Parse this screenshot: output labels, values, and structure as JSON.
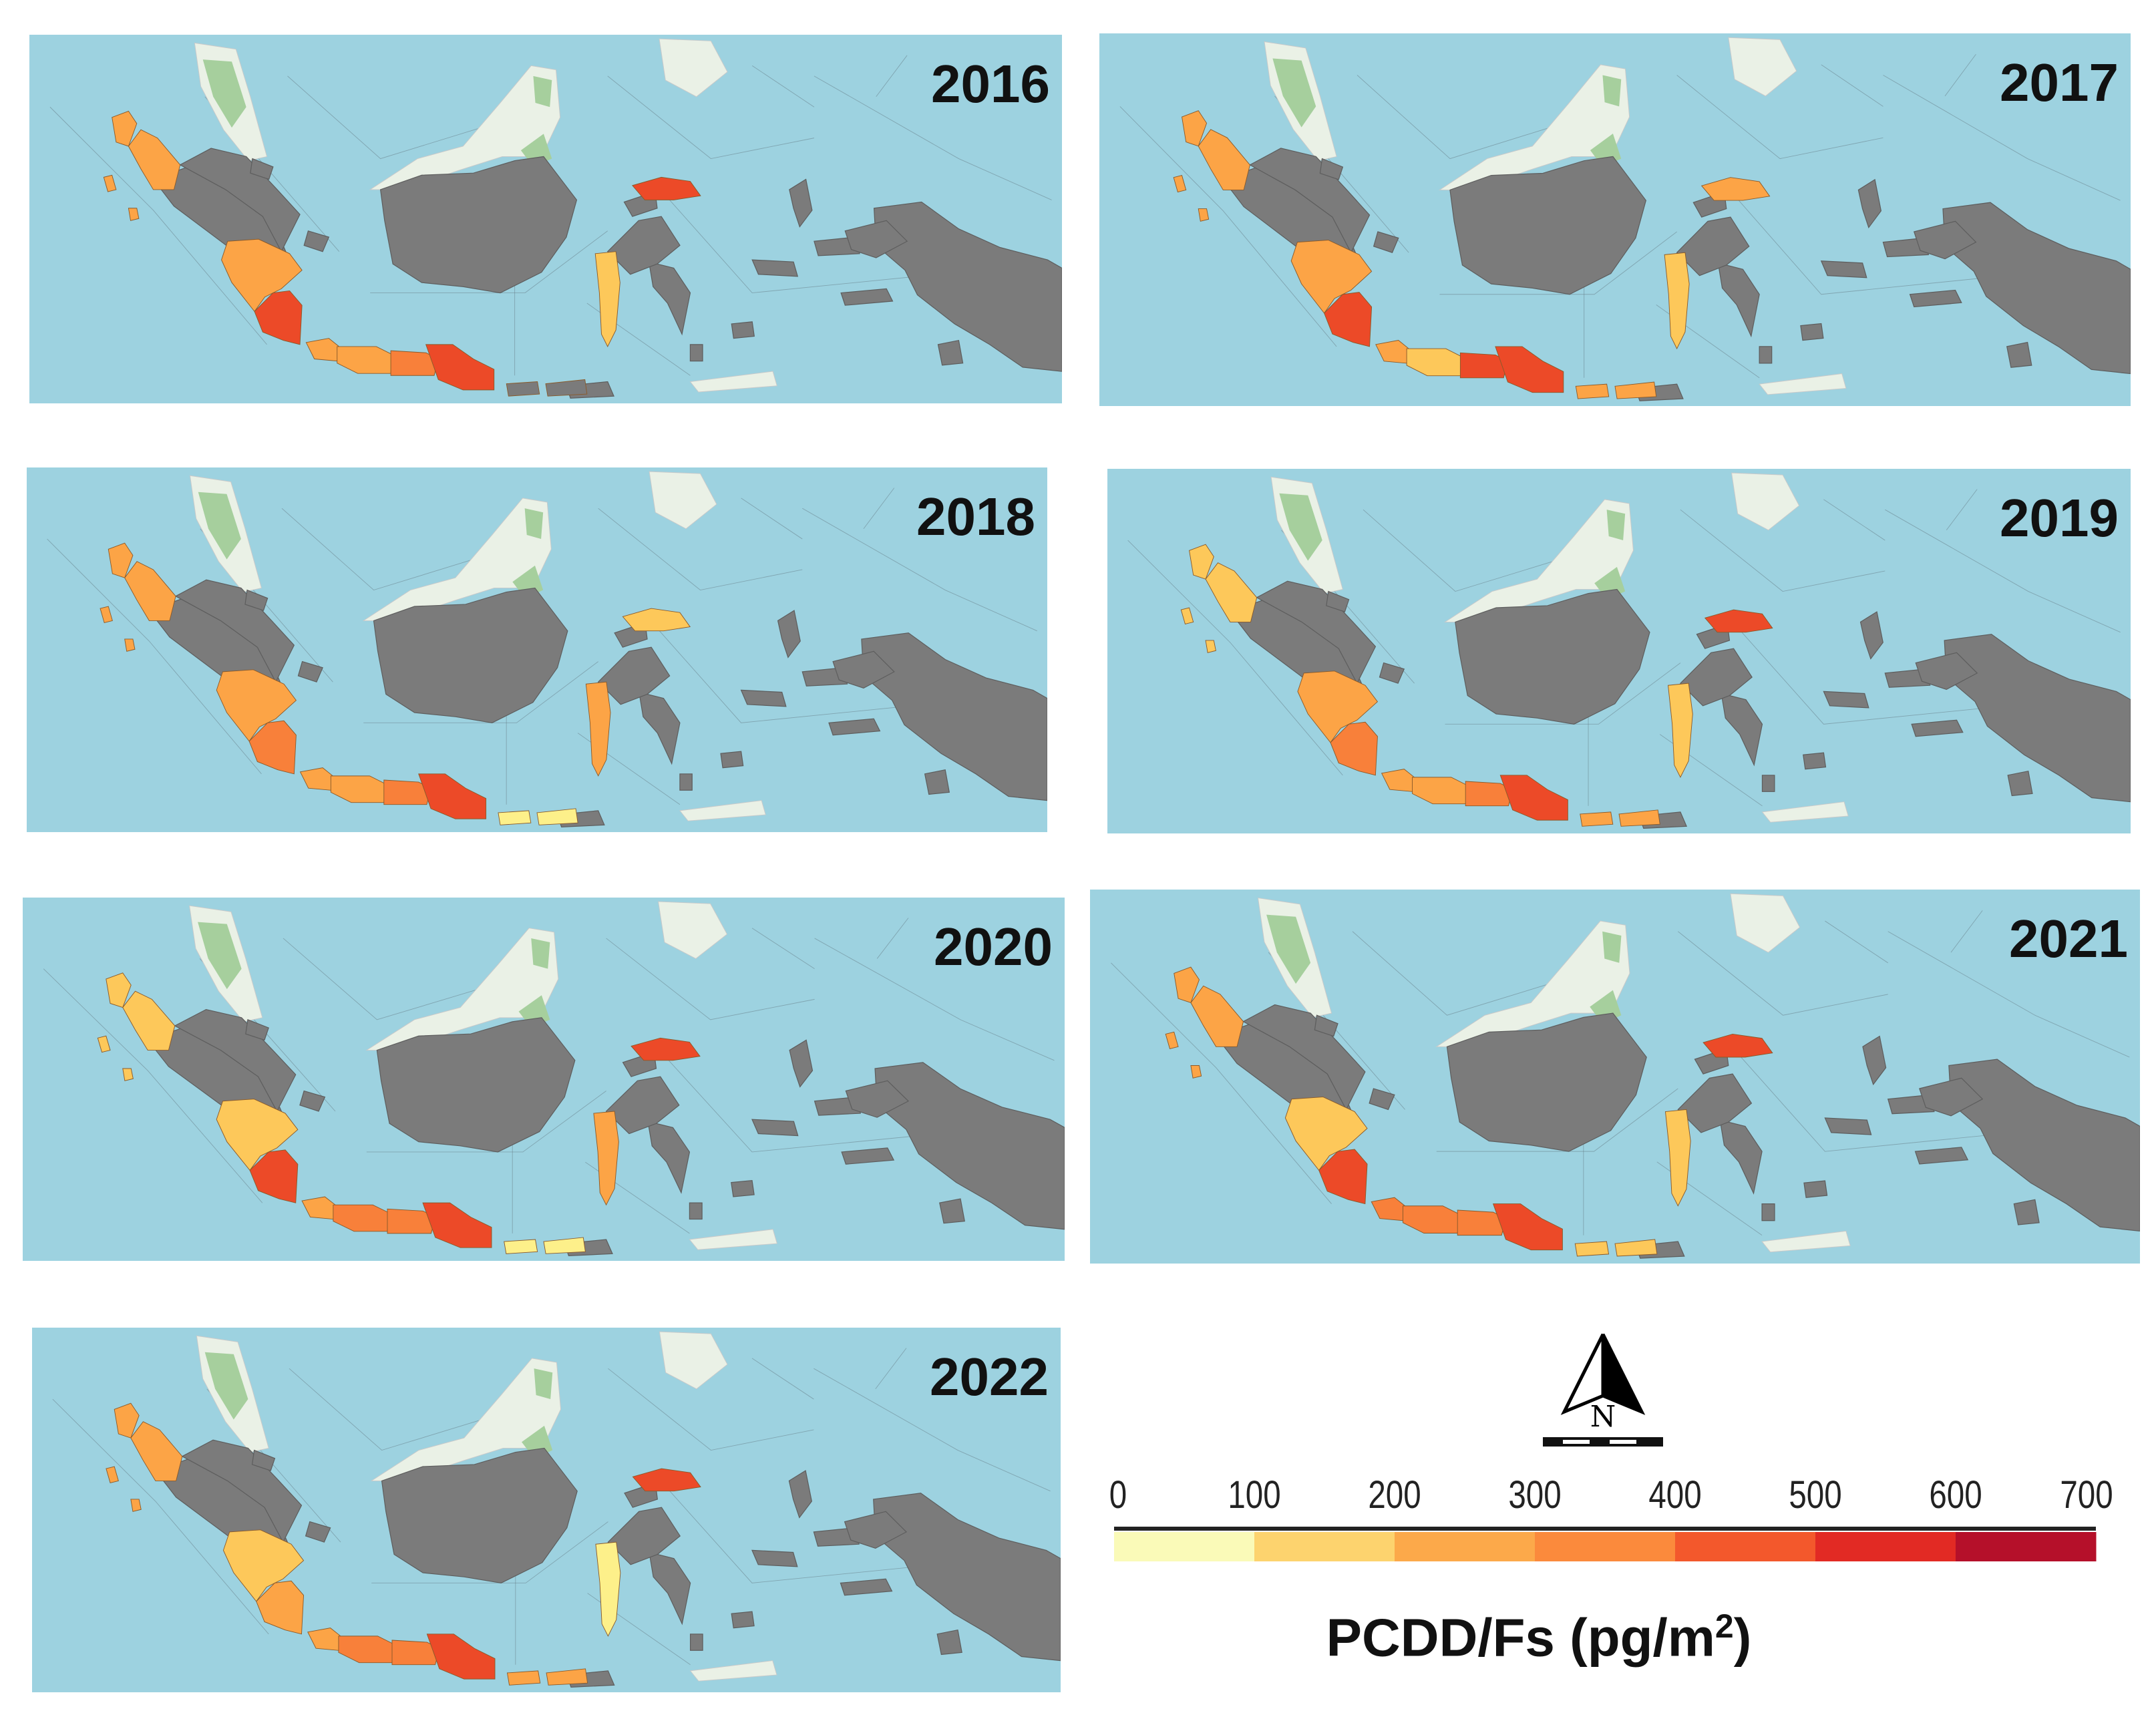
{
  "panels": [
    {
      "year": "2016",
      "province_levels": {
        "aceh": "c2",
        "north_sumatra": "c2",
        "west_sumatra_islands": "c2",
        "south_sumatra": "c2",
        "lampung": "c4",
        "banten": "c2",
        "west_java": "c2",
        "central_java": "c3",
        "east_java": "c4",
        "north_sulawesi": "c4",
        "west_sulawesi": "c1",
        "ntb": null,
        "ntt": null
      }
    },
    {
      "year": "2017",
      "province_levels": {
        "aceh": "c2",
        "north_sumatra": "c2",
        "west_sumatra_islands": "c2",
        "south_sumatra": "c2",
        "lampung": "c4",
        "banten": "c2",
        "west_java": "c1",
        "central_java": "c4",
        "east_java": "c4",
        "north_sulawesi": "c2",
        "west_sulawesi": "c1",
        "ntb": "c2",
        "ntt": "c2"
      }
    },
    {
      "year": "2018",
      "province_levels": {
        "aceh": "c2",
        "north_sumatra": "c2",
        "west_sumatra_islands": "c2",
        "south_sumatra": "c2",
        "lampung": "c3",
        "banten": "c2",
        "west_java": "c2",
        "central_java": "c3",
        "east_java": "c4",
        "north_sulawesi": "c1",
        "west_sulawesi": "c2",
        "ntb": "c0",
        "ntt": "c0"
      }
    },
    {
      "year": "2019",
      "province_levels": {
        "aceh": "c1",
        "north_sumatra": "c1",
        "west_sumatra_islands": "c1",
        "south_sumatra": "c2",
        "lampung": "c3",
        "banten": "c2",
        "west_java": "c2",
        "central_java": "c3",
        "east_java": "c4",
        "north_sulawesi": "c4",
        "west_sulawesi": "c1",
        "ntb": "c2",
        "ntt": "c2"
      }
    },
    {
      "year": "2020",
      "province_levels": {
        "aceh": "c1",
        "north_sumatra": "c1",
        "west_sumatra_islands": "c1",
        "south_sumatra": "c1",
        "lampung": "c4",
        "banten": "c2",
        "west_java": "c3",
        "central_java": "c3",
        "east_java": "c4",
        "north_sulawesi": "c4",
        "west_sulawesi": "c2",
        "ntb": "c0",
        "ntt": "c0"
      }
    },
    {
      "year": "2021",
      "province_levels": {
        "aceh": "c2",
        "north_sumatra": "c2",
        "west_sumatra_islands": "c2",
        "south_sumatra": "c1",
        "lampung": "c4",
        "banten": "c3",
        "west_java": "c3",
        "central_java": "c3",
        "east_java": "c4",
        "north_sulawesi": "c4",
        "west_sulawesi": "c1",
        "ntb": "c1",
        "ntt": "c1"
      }
    },
    {
      "year": "2022",
      "province_levels": {
        "aceh": "c2",
        "north_sumatra": "c2",
        "west_sumatra_islands": "c2",
        "south_sumatra": "c1",
        "lampung": "c2",
        "banten": "c2",
        "west_java": "c3",
        "central_java": "c3",
        "east_java": "c4",
        "north_sulawesi": "c4",
        "west_sulawesi": "c0",
        "ntb": "c2",
        "ntt": "c2"
      }
    }
  ],
  "legend": {
    "ticks": [
      "0",
      "100",
      "200",
      "300",
      "400",
      "500",
      "600",
      "700"
    ],
    "colors": [
      "#fafab8",
      "#fdd36e",
      "#fca94a",
      "#fb8a3c",
      "#f3582c",
      "#e22a24",
      "#b5102a"
    ],
    "title_main": "PCDD/Fs (pg/m",
    "title_sup": "2",
    "title_end": ")"
  },
  "level_colors": {
    "c0": "#fdf08a",
    "c1": "#fdc85a",
    "c2": "#fca446",
    "c3": "#f8803a",
    "c4": "#ec4a28"
  },
  "map_colors": {
    "sea": "#9dd2e0",
    "nodata": "#7b7b7b",
    "land": "#eaf1e6",
    "green": "#a6cf9d",
    "border": "#5d6f78"
  },
  "north_arrow": {
    "letter": "N"
  }
}
